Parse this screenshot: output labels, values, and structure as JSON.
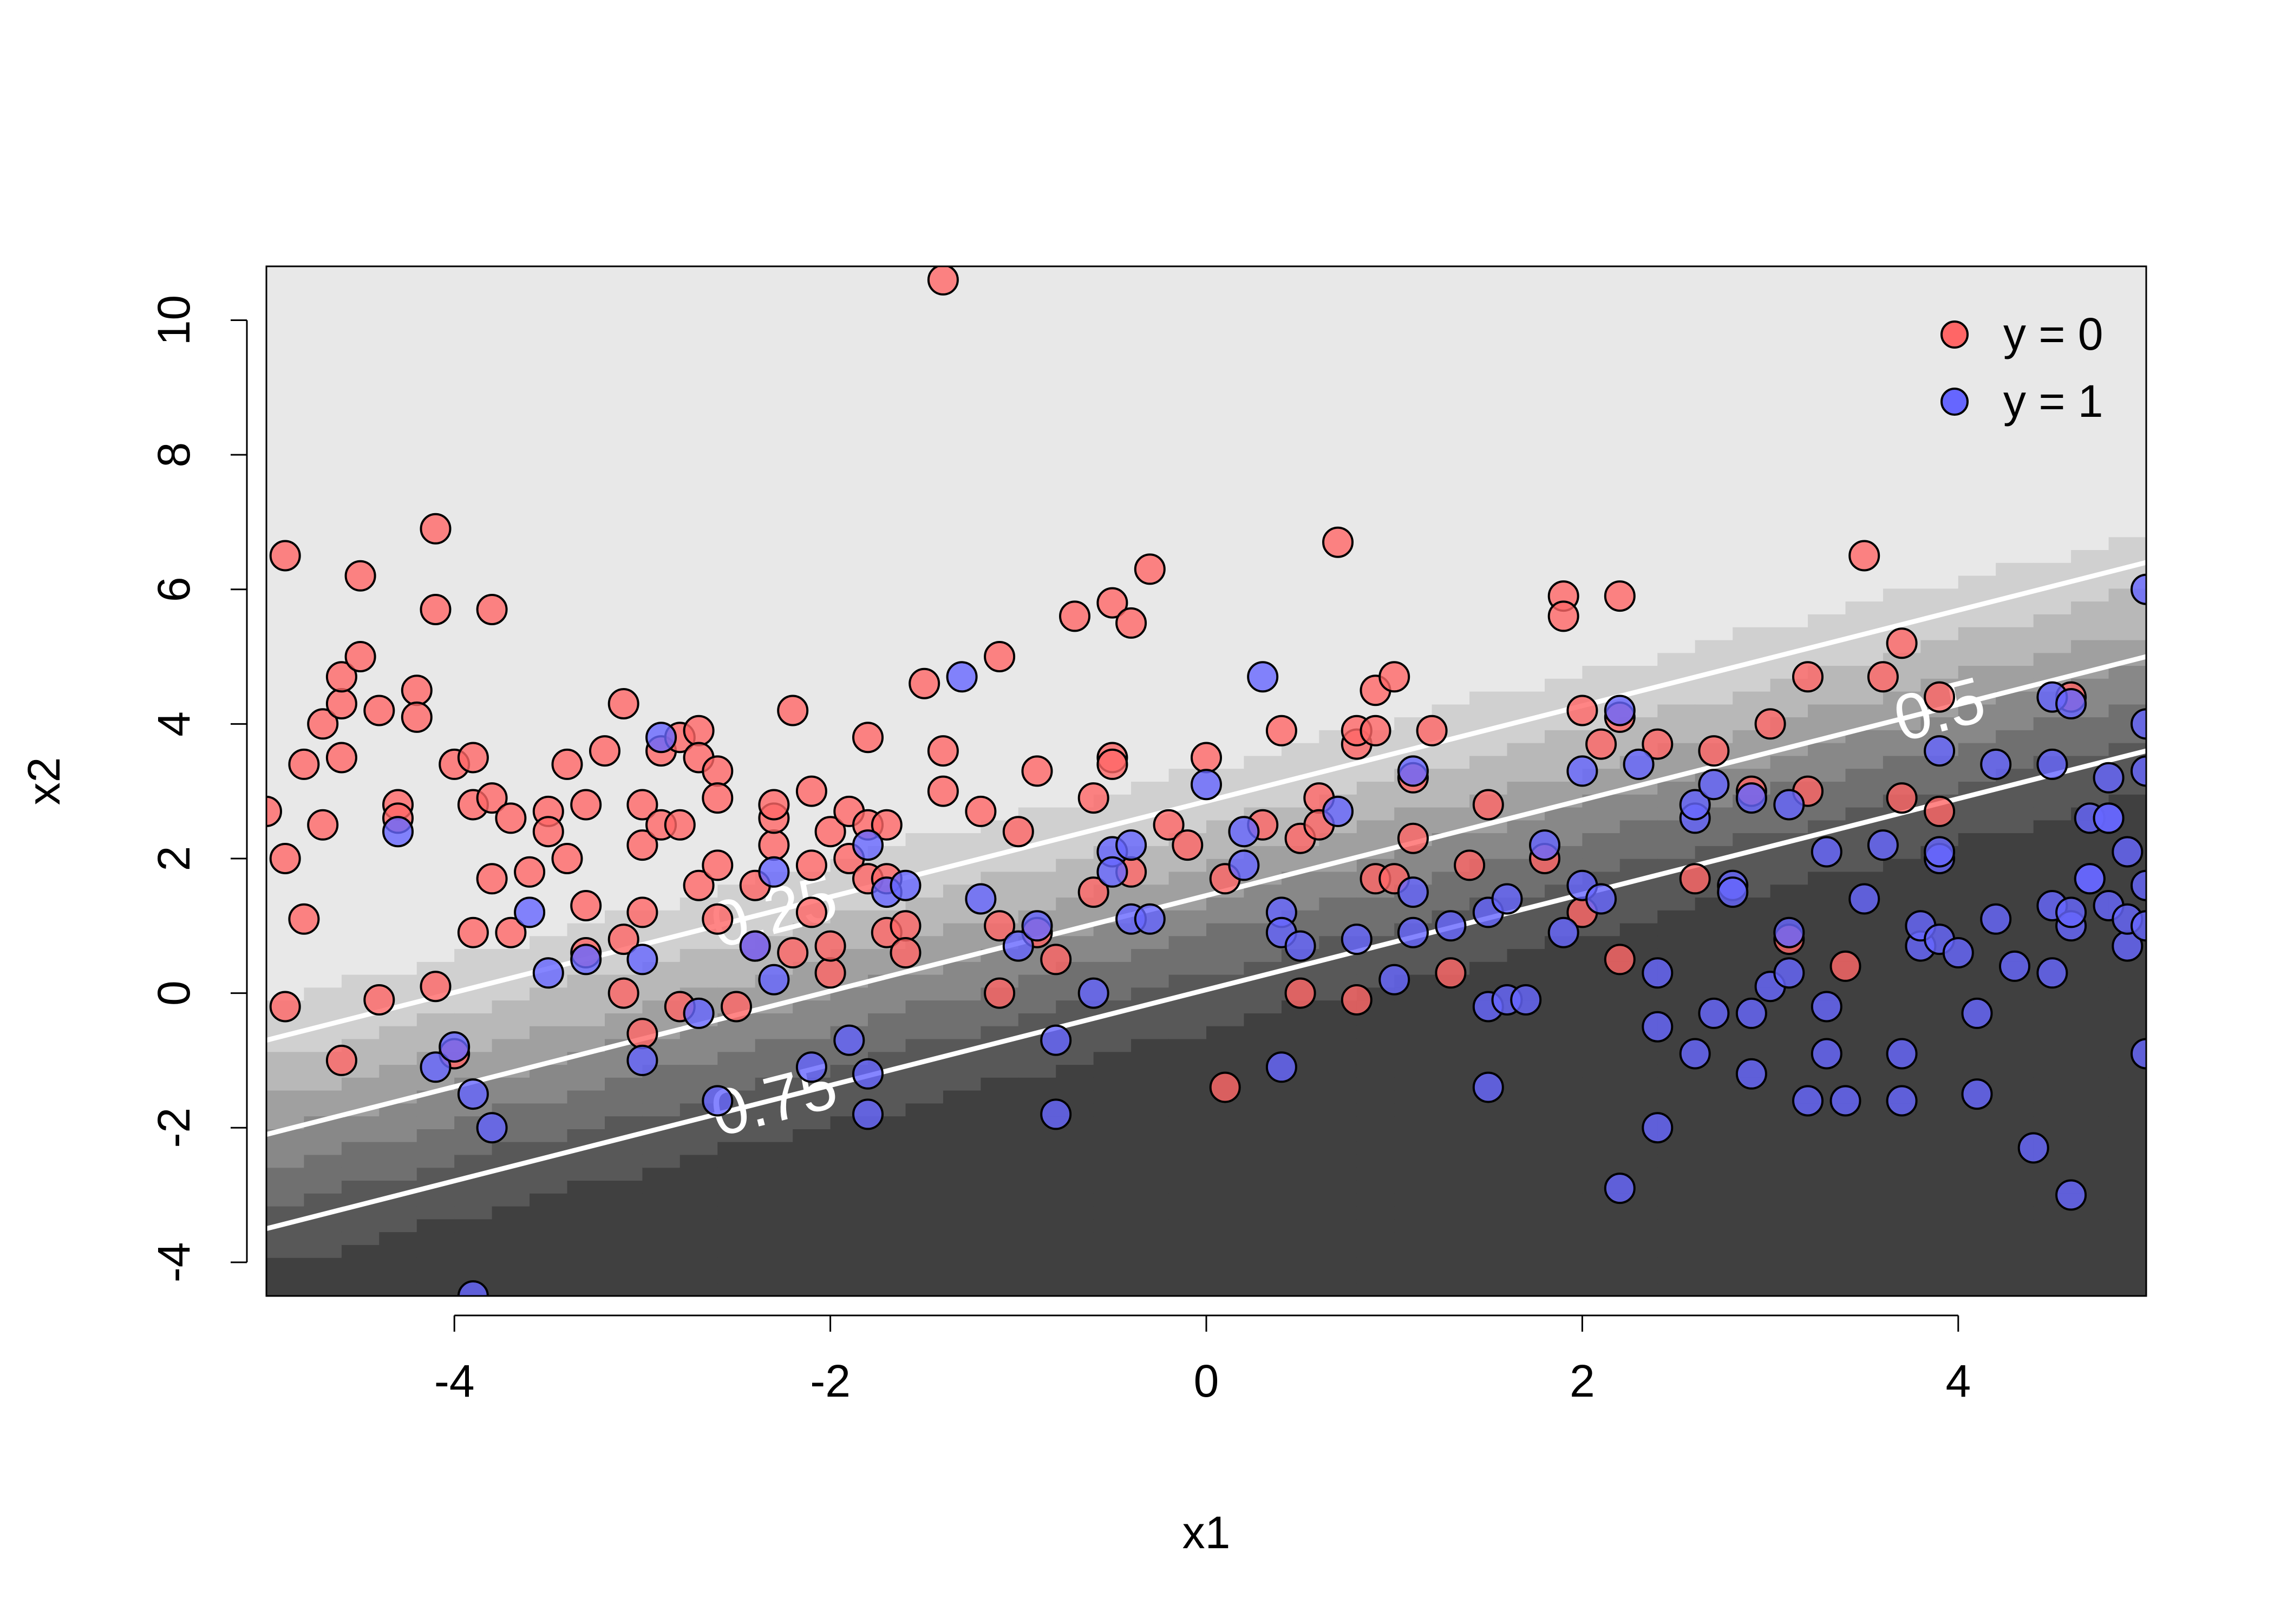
{
  "chart_data": {
    "type": "scatter",
    "title": "",
    "xlabel": "x1",
    "ylabel": "x2",
    "xlim": [
      -5,
      5
    ],
    "ylim": [
      -4.5,
      10.8
    ],
    "xticks": [
      -4,
      -2,
      0,
      2,
      4
    ],
    "yticks": [
      -4,
      -2,
      0,
      2,
      4,
      6,
      8,
      10
    ],
    "xtick_labels": [
      "-4",
      "-2",
      "0",
      "2",
      "4"
    ],
    "ytick_labels": [
      "-4",
      "-2",
      "0",
      "2",
      "4",
      "6",
      "8",
      "10"
    ],
    "grid": false,
    "legend_position": "top-right",
    "background": {
      "description_free_type": "heatmap",
      "boundary_slope": 0.7,
      "boundary_intercept": 1.4,
      "logistic_scale": 1.0,
      "levels": 8,
      "color_light": "#e8e8e8",
      "color_dark": "#404040"
    },
    "contours": [
      {
        "label": "0.25",
        "x": [
          -5,
          5
        ],
        "y": [
          -0.7,
          6.4
        ]
      },
      {
        "label": "0.5",
        "x": [
          -5,
          5
        ],
        "y": [
          -2.1,
          5.0
        ]
      },
      {
        "label": "0.75",
        "x": [
          -5,
          5
        ],
        "y": [
          -3.5,
          3.6
        ]
      }
    ],
    "series": [
      {
        "name": "y = 0",
        "color": "#ff6666",
        "points": [
          [
            -5.0,
            2.7
          ],
          [
            -4.9,
            2.0
          ],
          [
            -4.9,
            -0.2
          ],
          [
            -4.9,
            6.5
          ],
          [
            -4.8,
            1.1
          ],
          [
            -4.8,
            3.4
          ],
          [
            -4.7,
            4.0
          ],
          [
            -4.7,
            2.5
          ],
          [
            -4.6,
            -1.0
          ],
          [
            -4.6,
            3.5
          ],
          [
            -4.6,
            4.3
          ],
          [
            -4.6,
            4.7
          ],
          [
            -4.5,
            5.0
          ],
          [
            -4.5,
            6.2
          ],
          [
            -4.4,
            -0.1
          ],
          [
            -4.4,
            4.2
          ],
          [
            -4.3,
            2.8
          ],
          [
            -4.3,
            2.6
          ],
          [
            -4.2,
            4.5
          ],
          [
            -4.2,
            4.1
          ],
          [
            -4.1,
            0.1
          ],
          [
            -4.1,
            5.7
          ],
          [
            -4.1,
            6.9
          ],
          [
            -4.0,
            -0.9
          ],
          [
            -4.0,
            3.4
          ],
          [
            -3.9,
            2.8
          ],
          [
            -3.9,
            3.5
          ],
          [
            -3.9,
            0.9
          ],
          [
            -3.8,
            1.7
          ],
          [
            -3.8,
            5.7
          ],
          [
            -3.8,
            2.9
          ],
          [
            -3.7,
            2.6
          ],
          [
            -3.7,
            0.9
          ],
          [
            -3.6,
            1.8
          ],
          [
            -3.5,
            2.7
          ],
          [
            -3.5,
            2.4
          ],
          [
            -3.4,
            2.0
          ],
          [
            -3.4,
            3.4
          ],
          [
            -3.3,
            0.6
          ],
          [
            -3.3,
            1.3
          ],
          [
            -3.3,
            2.8
          ],
          [
            -3.2,
            3.6
          ],
          [
            -3.1,
            0.8
          ],
          [
            -3.1,
            4.3
          ],
          [
            -3.1,
            0.0
          ],
          [
            -3.0,
            1.2
          ],
          [
            -3.0,
            2.8
          ],
          [
            -3.0,
            2.2
          ],
          [
            -3.0,
            -0.6
          ],
          [
            -2.9,
            3.6
          ],
          [
            -2.9,
            2.5
          ],
          [
            -2.8,
            3.8
          ],
          [
            -2.8,
            -0.2
          ],
          [
            -2.8,
            2.5
          ],
          [
            -2.7,
            3.9
          ],
          [
            -2.7,
            1.6
          ],
          [
            -2.7,
            3.5
          ],
          [
            -2.6,
            1.9
          ],
          [
            -2.6,
            3.3
          ],
          [
            -2.6,
            2.9
          ],
          [
            -2.6,
            1.1
          ],
          [
            -2.5,
            -0.2
          ],
          [
            -2.4,
            1.6
          ],
          [
            -2.4,
            0.7
          ],
          [
            -2.3,
            2.2
          ],
          [
            -2.3,
            2.6
          ],
          [
            -2.3,
            2.8
          ],
          [
            -2.2,
            4.2
          ],
          [
            -2.2,
            0.6
          ],
          [
            -2.1,
            1.9
          ],
          [
            -2.1,
            3.0
          ],
          [
            -2.1,
            1.2
          ],
          [
            -2.0,
            0.3
          ],
          [
            -2.0,
            0.7
          ],
          [
            -2.0,
            2.4
          ],
          [
            -1.9,
            2.7
          ],
          [
            -1.9,
            2.0
          ],
          [
            -1.8,
            3.8
          ],
          [
            -1.8,
            2.5
          ],
          [
            -1.8,
            1.7
          ],
          [
            -1.7,
            1.7
          ],
          [
            -1.7,
            0.9
          ],
          [
            -1.7,
            2.5
          ],
          [
            -1.6,
            1.0
          ],
          [
            -1.6,
            0.6
          ],
          [
            -1.5,
            4.6
          ],
          [
            -1.4,
            3.0
          ],
          [
            -1.4,
            3.6
          ],
          [
            -1.4,
            10.6
          ],
          [
            -1.2,
            2.7
          ],
          [
            -1.1,
            1.0
          ],
          [
            -1.1,
            5.0
          ],
          [
            -1.1,
            0.0
          ],
          [
            -1.0,
            2.4
          ],
          [
            -0.9,
            3.3
          ],
          [
            -0.9,
            0.9
          ],
          [
            -0.8,
            0.5
          ],
          [
            -0.7,
            5.6
          ],
          [
            -0.6,
            2.9
          ],
          [
            -0.6,
            1.5
          ],
          [
            -0.5,
            3.5
          ],
          [
            -0.5,
            3.4
          ],
          [
            -0.5,
            5.8
          ],
          [
            -0.4,
            5.5
          ],
          [
            -0.4,
            1.8
          ],
          [
            -0.3,
            6.3
          ],
          [
            -0.2,
            2.5
          ],
          [
            -0.1,
            2.2
          ],
          [
            0.0,
            3.5
          ],
          [
            0.1,
            1.7
          ],
          [
            0.1,
            -1.4
          ],
          [
            0.3,
            2.5
          ],
          [
            0.4,
            3.9
          ],
          [
            0.5,
            0.0
          ],
          [
            0.5,
            2.3
          ],
          [
            0.6,
            2.9
          ],
          [
            0.6,
            2.5
          ],
          [
            0.7,
            6.7
          ],
          [
            0.8,
            3.7
          ],
          [
            0.8,
            3.9
          ],
          [
            0.8,
            -0.1
          ],
          [
            0.9,
            1.7
          ],
          [
            0.9,
            3.9
          ],
          [
            0.9,
            4.5
          ],
          [
            1.0,
            4.7
          ],
          [
            1.0,
            1.7
          ],
          [
            1.1,
            3.2
          ],
          [
            1.1,
            2.3
          ],
          [
            1.2,
            3.9
          ],
          [
            1.3,
            0.3
          ],
          [
            1.4,
            1.9
          ],
          [
            1.5,
            2.8
          ],
          [
            1.8,
            2.0
          ],
          [
            1.9,
            5.9
          ],
          [
            1.9,
            5.6
          ],
          [
            2.0,
            4.2
          ],
          [
            2.0,
            1.2
          ],
          [
            2.1,
            3.7
          ],
          [
            2.2,
            5.9
          ],
          [
            2.2,
            0.5
          ],
          [
            2.2,
            4.1
          ],
          [
            2.4,
            3.7
          ],
          [
            2.6,
            1.7
          ],
          [
            2.7,
            3.6
          ],
          [
            2.9,
            3.0
          ],
          [
            3.0,
            4.0
          ],
          [
            3.1,
            0.8
          ],
          [
            3.2,
            3.0
          ],
          [
            3.2,
            4.7
          ],
          [
            3.4,
            0.4
          ],
          [
            3.5,
            6.5
          ],
          [
            3.6,
            4.7
          ],
          [
            3.7,
            2.9
          ],
          [
            3.7,
            5.2
          ],
          [
            3.9,
            2.7
          ],
          [
            3.9,
            4.4
          ],
          [
            4.6,
            4.4
          ]
        ]
      },
      {
        "name": "y = 1",
        "color": "#6666ff",
        "points": [
          [
            -4.3,
            2.4
          ],
          [
            -4.1,
            -1.1
          ],
          [
            -4.0,
            -0.8
          ],
          [
            -3.9,
            -1.5
          ],
          [
            -3.9,
            -4.5
          ],
          [
            -3.8,
            -2.0
          ],
          [
            -3.6,
            1.2
          ],
          [
            -3.5,
            0.3
          ],
          [
            -3.3,
            0.5
          ],
          [
            -3.0,
            0.5
          ],
          [
            -3.0,
            -1.0
          ],
          [
            -2.9,
            3.8
          ],
          [
            -2.7,
            -0.3
          ],
          [
            -2.6,
            -1.6
          ],
          [
            -2.4,
            0.7
          ],
          [
            -2.3,
            0.2
          ],
          [
            -2.3,
            1.8
          ],
          [
            -2.1,
            -1.1
          ],
          [
            -1.9,
            -0.7
          ],
          [
            -1.8,
            -1.8
          ],
          [
            -1.8,
            -1.2
          ],
          [
            -1.8,
            2.2
          ],
          [
            -1.7,
            1.5
          ],
          [
            -1.6,
            1.6
          ],
          [
            -1.3,
            4.7
          ],
          [
            -1.2,
            1.4
          ],
          [
            -1.0,
            0.7
          ],
          [
            -0.9,
            1.0
          ],
          [
            -0.8,
            -0.7
          ],
          [
            -0.8,
            -1.8
          ],
          [
            -0.6,
            0.0
          ],
          [
            -0.5,
            2.1
          ],
          [
            -0.5,
            1.8
          ],
          [
            -0.4,
            2.2
          ],
          [
            -0.4,
            1.1
          ],
          [
            -0.3,
            1.1
          ],
          [
            0.0,
            3.1
          ],
          [
            0.2,
            1.9
          ],
          [
            0.2,
            2.4
          ],
          [
            0.3,
            4.7
          ],
          [
            0.4,
            1.2
          ],
          [
            0.4,
            0.9
          ],
          [
            0.4,
            -1.1
          ],
          [
            0.5,
            0.7
          ],
          [
            0.7,
            2.7
          ],
          [
            0.8,
            0.8
          ],
          [
            1.0,
            0.2
          ],
          [
            1.1,
            3.3
          ],
          [
            1.1,
            1.5
          ],
          [
            1.1,
            0.9
          ],
          [
            1.3,
            1.0
          ],
          [
            1.5,
            1.2
          ],
          [
            1.5,
            -0.2
          ],
          [
            1.5,
            -1.4
          ],
          [
            1.6,
            -0.1
          ],
          [
            1.6,
            1.4
          ],
          [
            1.7,
            -0.1
          ],
          [
            1.8,
            2.2
          ],
          [
            1.9,
            0.9
          ],
          [
            2.0,
            3.3
          ],
          [
            2.0,
            1.6
          ],
          [
            2.1,
            1.4
          ],
          [
            2.2,
            -2.9
          ],
          [
            2.2,
            4.2
          ],
          [
            2.3,
            3.4
          ],
          [
            2.4,
            0.3
          ],
          [
            2.4,
            -0.5
          ],
          [
            2.4,
            -2.0
          ],
          [
            2.6,
            2.6
          ],
          [
            2.6,
            -0.9
          ],
          [
            2.6,
            2.8
          ],
          [
            2.7,
            3.1
          ],
          [
            2.7,
            -0.3
          ],
          [
            2.8,
            1.6
          ],
          [
            2.8,
            1.5
          ],
          [
            2.9,
            2.9
          ],
          [
            2.9,
            -0.3
          ],
          [
            2.9,
            -1.2
          ],
          [
            3.0,
            0.1
          ],
          [
            3.1,
            2.8
          ],
          [
            3.1,
            0.3
          ],
          [
            3.1,
            0.9
          ],
          [
            3.2,
            -1.6
          ],
          [
            3.3,
            2.1
          ],
          [
            3.3,
            -0.2
          ],
          [
            3.3,
            -0.9
          ],
          [
            3.4,
            -1.6
          ],
          [
            3.5,
            1.4
          ],
          [
            3.6,
            2.2
          ],
          [
            3.7,
            -0.9
          ],
          [
            3.7,
            -1.6
          ],
          [
            3.8,
            0.7
          ],
          [
            3.8,
            1.0
          ],
          [
            3.9,
            2.0
          ],
          [
            3.9,
            0.8
          ],
          [
            3.9,
            2.1
          ],
          [
            3.9,
            3.6
          ],
          [
            4.0,
            0.6
          ],
          [
            4.1,
            -1.5
          ],
          [
            4.1,
            -0.3
          ],
          [
            4.2,
            1.1
          ],
          [
            4.2,
            3.4
          ],
          [
            4.3,
            0.4
          ],
          [
            4.4,
            -2.3
          ],
          [
            4.5,
            4.4
          ],
          [
            4.5,
            3.4
          ],
          [
            4.5,
            1.3
          ],
          [
            4.5,
            0.3
          ],
          [
            4.6,
            -3.0
          ],
          [
            4.6,
            1.0
          ],
          [
            4.6,
            1.2
          ],
          [
            4.6,
            4.3
          ],
          [
            4.7,
            2.6
          ],
          [
            4.7,
            1.7
          ],
          [
            4.7,
            1.7
          ],
          [
            4.8,
            2.6
          ],
          [
            4.8,
            1.3
          ],
          [
            4.8,
            3.2
          ],
          [
            4.8,
            2.6
          ],
          [
            4.9,
            2.1
          ],
          [
            4.9,
            0.7
          ],
          [
            4.9,
            1.1
          ],
          [
            5.0,
            3.3
          ],
          [
            5.0,
            1.0
          ],
          [
            5.0,
            6.0
          ],
          [
            5.0,
            -0.9
          ],
          [
            5.0,
            4.0
          ],
          [
            5.0,
            1.6
          ]
        ]
      }
    ]
  }
}
